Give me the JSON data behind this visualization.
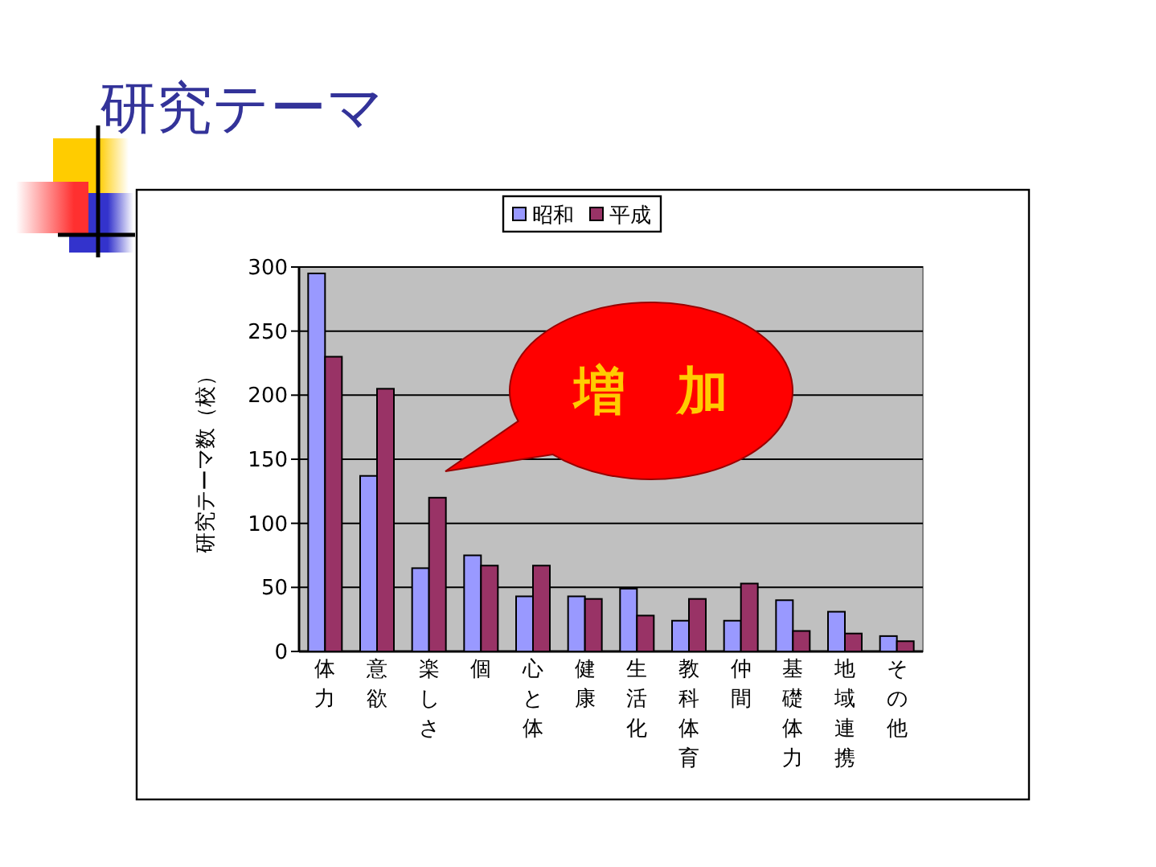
{
  "chart_data": {
    "type": "bar",
    "title": "研究テーマ",
    "ylabel": "研究テーマ数（校）",
    "categories": [
      "体力",
      "意欲",
      "楽しさ",
      "個",
      "心と体",
      "健康",
      "生活化",
      "教科体育",
      "仲間",
      "基礎体力",
      "地域連携",
      "その他"
    ],
    "series": [
      {
        "name": "昭和",
        "color": "#9999ff",
        "values": [
          295,
          137,
          65,
          75,
          43,
          43,
          49,
          24,
          24,
          40,
          31,
          12
        ]
      },
      {
        "name": "平成",
        "color": "#993366",
        "values": [
          230,
          205,
          120,
          67,
          67,
          41,
          28,
          41,
          53,
          16,
          14,
          8
        ]
      }
    ],
    "ylim": [
      0,
      300
    ],
    "yticks": [
      0,
      50,
      100,
      150,
      200,
      250,
      300
    ],
    "grid": "y",
    "legend": "top",
    "annotations": [
      "増　加"
    ]
  }
}
